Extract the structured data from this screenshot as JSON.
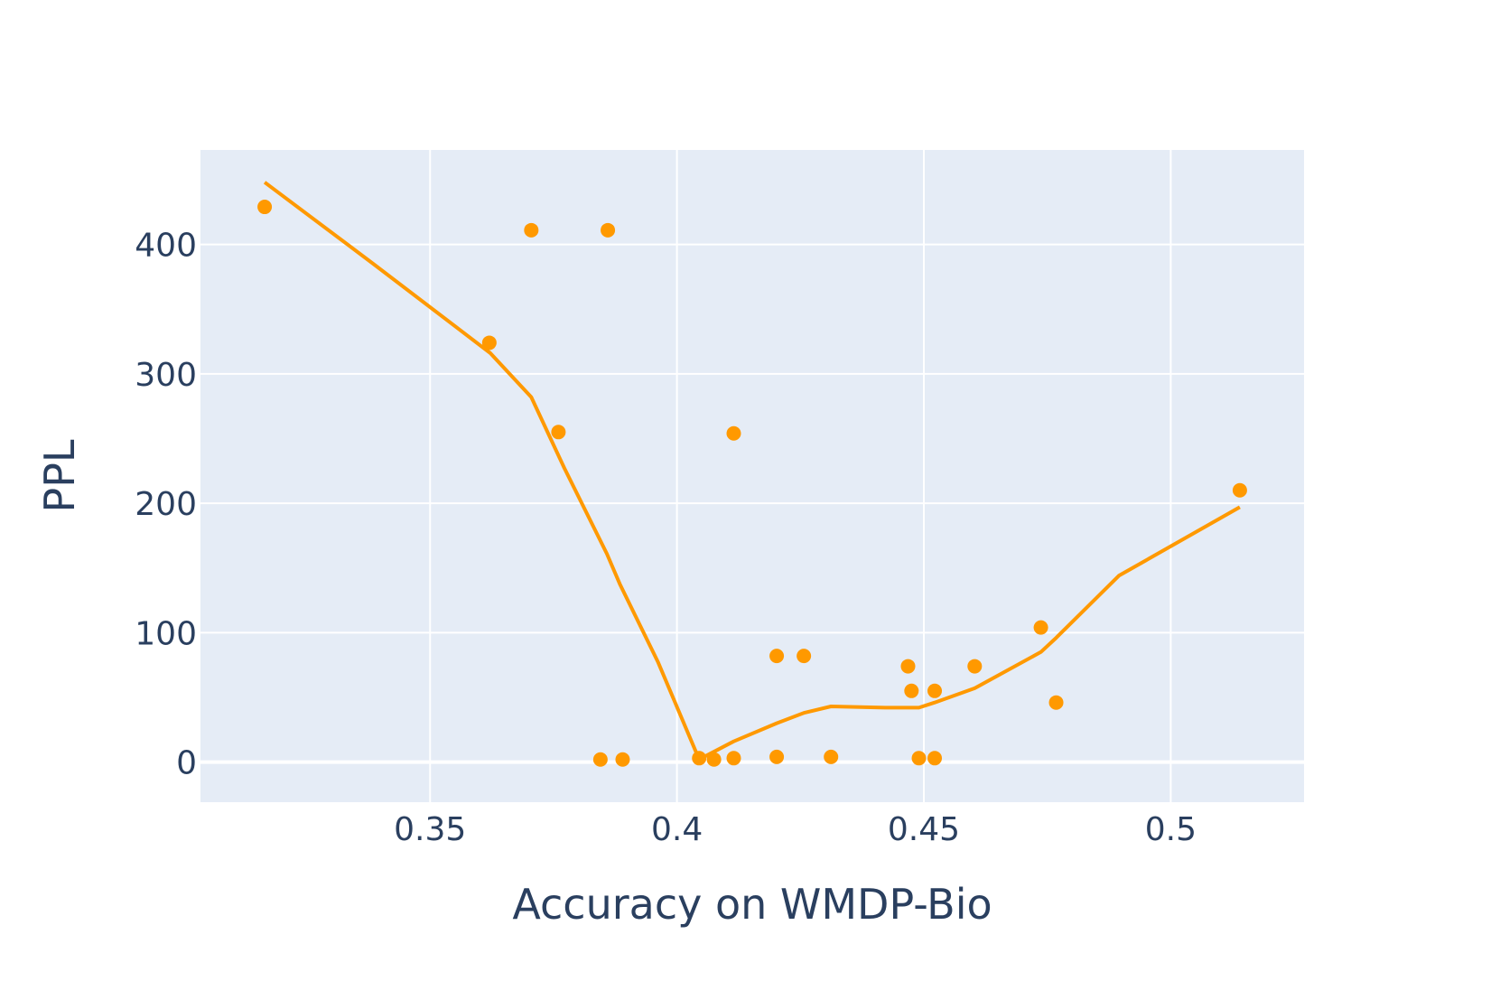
{
  "chart_data": {
    "type": "scatter",
    "title": "",
    "xlabel": "Accuracy on WMDP-Bio",
    "ylabel": "PPL",
    "xlim": [
      0.3035,
      0.527
    ],
    "ylim": [
      -31,
      473
    ],
    "x_ticks": [
      0.35,
      0.4,
      0.45,
      0.5
    ],
    "x_tick_labels": [
      "0.35",
      "0.4",
      "0.45",
      "0.5"
    ],
    "y_ticks": [
      0,
      100,
      200,
      300,
      400
    ],
    "y_tick_labels": [
      "0",
      "100",
      "200",
      "300",
      "400"
    ],
    "grid": true,
    "legend": "none",
    "colors": {
      "series": "#ff9900",
      "plot_bg": "#e5ecf6",
      "grid": "#ffffff",
      "text": "#2a3f5f"
    },
    "series": [
      {
        "mode": "markers",
        "x": [
          0.3165,
          0.362,
          0.3705,
          0.376,
          0.3845,
          0.386,
          0.389,
          0.4045,
          0.4075,
          0.4115,
          0.4115,
          0.4202,
          0.4202,
          0.4257,
          0.4312,
          0.4468,
          0.4475,
          0.449,
          0.4522,
          0.4522,
          0.4603,
          0.4737,
          0.4768,
          0.514
        ],
        "y": [
          429,
          324,
          411,
          255,
          2,
          411,
          2,
          3,
          2,
          3,
          254,
          4,
          82,
          82,
          4,
          74,
          55,
          3,
          55,
          3,
          74,
          104,
          46,
          210
        ]
      },
      {
        "mode": "lines",
        "x": [
          0.3165,
          0.3385,
          0.3622,
          0.3705,
          0.3772,
          0.3858,
          0.3885,
          0.3962,
          0.4045,
          0.4115,
          0.4202,
          0.4257,
          0.4312,
          0.4422,
          0.449,
          0.4522,
          0.4603,
          0.4737,
          0.4768,
          0.4895,
          0.514
        ],
        "y": [
          448,
          385,
          316,
          282,
          227,
          161,
          137,
          77,
          2,
          16,
          30,
          38,
          43,
          42,
          42,
          46,
          57,
          85,
          96,
          144,
          197
        ]
      }
    ]
  }
}
